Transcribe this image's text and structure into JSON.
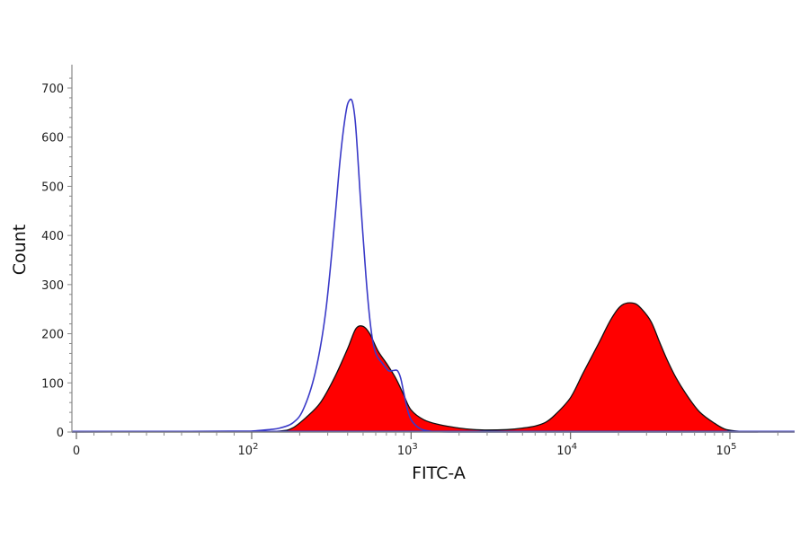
{
  "chart_data": {
    "type": "area",
    "title": "",
    "xlabel": "FITC-A",
    "ylabel": "Count",
    "x_scale": "biexponential",
    "ylim": [
      0,
      720
    ],
    "y_ticks": [
      0,
      100,
      200,
      300,
      400,
      500,
      600,
      700
    ],
    "x_ticks": [
      {
        "value": 0,
        "label": "0",
        "exp": ""
      },
      {
        "value": 100,
        "label": "10",
        "exp": "2"
      },
      {
        "value": 1000,
        "label": "10",
        "exp": "3"
      },
      {
        "value": 10000,
        "label": "10",
        "exp": "4"
      },
      {
        "value": 100000,
        "label": "10",
        "exp": "5"
      }
    ],
    "grid": false,
    "legend": "none",
    "series": [
      {
        "style": "filled",
        "color": "#ff0000",
        "outline": "#111111",
        "x": [
          100,
          150,
          180,
          220,
          270,
          330,
          400,
          450,
          500,
          550,
          620,
          700,
          800,
          900,
          1000,
          1200,
          1500,
          2000,
          2500,
          3000,
          4000,
          5000,
          6000,
          7000,
          8000,
          10000,
          12000,
          15000,
          18000,
          21000,
          25000,
          28000,
          32000,
          36000,
          40000,
          46000,
          55000,
          65000,
          80000,
          95000,
          120000,
          150000
        ],
        "y": [
          0,
          2,
          8,
          30,
          60,
          110,
          170,
          210,
          215,
          200,
          165,
          140,
          110,
          75,
          45,
          25,
          15,
          8,
          5,
          4,
          5,
          8,
          12,
          20,
          35,
          70,
          120,
          180,
          230,
          258,
          262,
          250,
          225,
          185,
          150,
          110,
          70,
          40,
          18,
          5,
          1,
          0
        ]
      },
      {
        "style": "outline",
        "color": "#3a3ac8",
        "x": [
          100,
          130,
          150,
          180,
          210,
          250,
          290,
          330,
          360,
          390,
          410,
          430,
          450,
          480,
          520,
          560,
          600,
          660,
          720,
          770,
          820,
          860,
          900,
          950,
          1000,
          1100,
          1200,
          1400,
          1800,
          2500,
          4000
        ],
        "y": [
          2,
          5,
          8,
          18,
          45,
          120,
          240,
          420,
          560,
          650,
          675,
          670,
          620,
          480,
          320,
          210,
          160,
          140,
          125,
          125,
          125,
          110,
          80,
          45,
          25,
          10,
          4,
          1,
          0,
          0,
          0
        ]
      }
    ]
  }
}
